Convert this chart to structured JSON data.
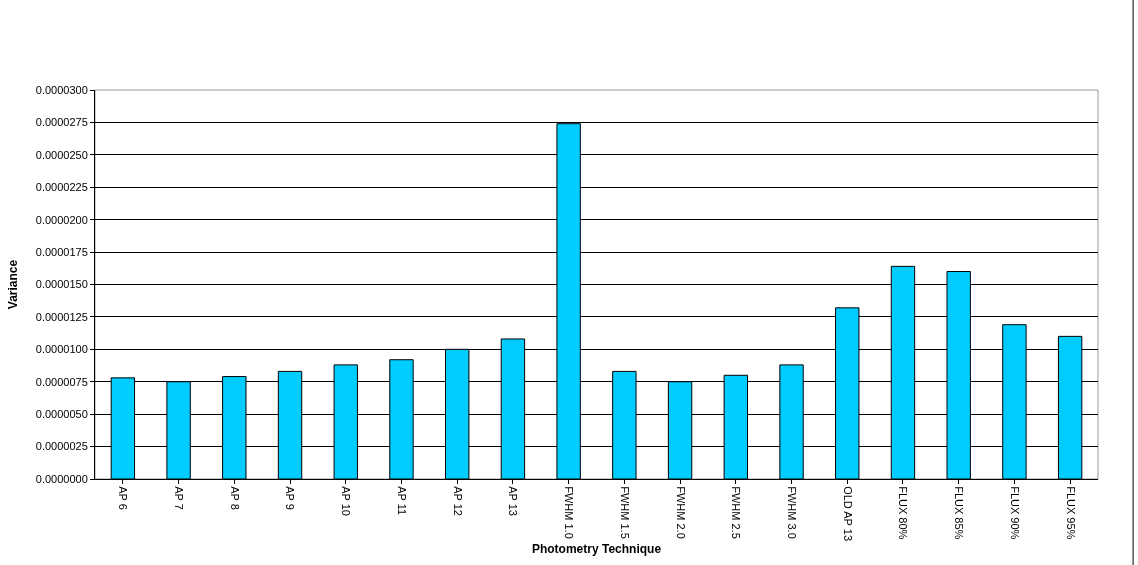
{
  "chart_data": {
    "type": "bar",
    "xlabel": "Photometry Technique",
    "ylabel": "Variance",
    "categories": [
      "AP 6",
      "AP 7",
      "AP 8",
      "AP 9",
      "AP 10",
      "AP 11",
      "AP 12",
      "AP 13",
      "FWHM 1.0",
      "FWHM 1.5",
      "FWHM 2.0",
      "FWHM 2.5",
      "FWHM 3.0",
      "OLD AP 13",
      "FLUX 80%",
      "FLUX 85%",
      "FLUX 90%",
      "FLUX 95%"
    ],
    "values": [
      7.8e-06,
      7.5e-06,
      7.9e-06,
      8.3e-06,
      8.8e-06,
      9.2e-06,
      1e-05,
      1.08e-05,
      2.74e-05,
      8.3e-06,
      7.5e-06,
      8e-06,
      8.8e-06,
      1.32e-05,
      1.64e-05,
      1.6e-05,
      1.19e-05,
      1.1e-05
    ],
    "color": "#00ccff",
    "ylim": [
      0,
      3e-05
    ],
    "yticks": [
      {
        "value": 0,
        "label": "0.0000000"
      },
      {
        "value": 2.5e-06,
        "label": "0.0000025"
      },
      {
        "value": 5e-06,
        "label": "0.0000050"
      },
      {
        "value": 7.5e-06,
        "label": "0.0000075"
      },
      {
        "value": 1e-05,
        "label": "0.0000100"
      },
      {
        "value": 1.25e-05,
        "label": "0.0000125"
      },
      {
        "value": 1.5e-05,
        "label": "0.0000150"
      },
      {
        "value": 1.75e-05,
        "label": "0.0000175"
      },
      {
        "value": 2e-05,
        "label": "0.0000200"
      },
      {
        "value": 2.25e-05,
        "label": "0.0000225"
      },
      {
        "value": 2.5e-05,
        "label": "0.0000250"
      },
      {
        "value": 2.75e-05,
        "label": "0.0000275"
      },
      {
        "value": 3e-05,
        "label": "0.0000300"
      }
    ],
    "grid": "y"
  }
}
